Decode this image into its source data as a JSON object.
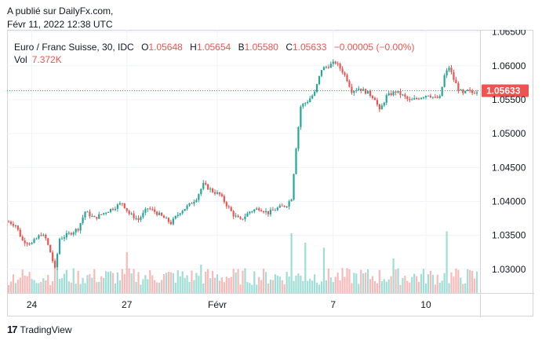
{
  "header": {
    "published_line": "A publié sur DailyFx.com,",
    "date_line": "Févr 11, 2022 12:38 UTC"
  },
  "legend": {
    "symbol": "Euro / Franc Suisse, 30, IDC",
    "o_label": "O",
    "o_value": "1.05648",
    "h_label": "H",
    "h_value": "1.05654",
    "b_label": "B",
    "b_value": "1.05580",
    "c_label": "C",
    "c_value": "1.05633",
    "change": "−0.00005 (−0.00%)",
    "vol_label": "Vol",
    "vol_value": "7.372K"
  },
  "brand": {
    "logo": "17",
    "name": "TradingView"
  },
  "colors": {
    "up": "#26a69a",
    "down": "#ef5350",
    "up_vol": "#7fd1c7",
    "down_vol": "#f5a3a1",
    "grid": "#f0f3fa",
    "axis_text": "#131722"
  },
  "chart_data": {
    "type": "candlestick",
    "title": "Euro / Franc Suisse, 30, IDC",
    "timeframe": "30",
    "x_ticks": [
      {
        "index": 10,
        "label": "24"
      },
      {
        "index": 51,
        "label": "27"
      },
      {
        "index": 90,
        "label": "Févr"
      },
      {
        "index": 140,
        "label": "7"
      },
      {
        "index": 180,
        "label": "10"
      }
    ],
    "y_ticks": [
      "1.03000",
      "1.03500",
      "1.04000",
      "1.04500",
      "1.05000",
      "1.05500",
      "1.06000",
      "1.06500"
    ],
    "ylim": [
      1.0265,
      1.0653
    ],
    "last_price": 1.05633,
    "last_price_label": "1.05633",
    "close_path": [
      [
        0,
        1.037
      ],
      [
        3,
        1.0365
      ],
      [
        6,
        1.0342
      ],
      [
        10,
        1.0338
      ],
      [
        14,
        1.0352
      ],
      [
        16,
        1.0345
      ],
      [
        18,
        1.0325
      ],
      [
        20,
        1.03
      ],
      [
        22,
        1.0345
      ],
      [
        26,
        1.0352
      ],
      [
        30,
        1.036
      ],
      [
        33,
        1.0385
      ],
      [
        37,
        1.0375
      ],
      [
        41,
        1.0383
      ],
      [
        45,
        1.039
      ],
      [
        49,
        1.0398
      ],
      [
        52,
        1.0382
      ],
      [
        56,
        1.0373
      ],
      [
        60,
        1.039
      ],
      [
        63,
        1.0385
      ],
      [
        66,
        1.0378
      ],
      [
        70,
        1.0368
      ],
      [
        74,
        1.0385
      ],
      [
        78,
        1.0395
      ],
      [
        81,
        1.0405
      ],
      [
        84,
        1.0425
      ],
      [
        88,
        1.0415
      ],
      [
        91,
        1.041
      ],
      [
        94,
        1.0395
      ],
      [
        97,
        1.038
      ],
      [
        100,
        1.0372
      ],
      [
        104,
        1.0385
      ],
      [
        108,
        1.039
      ],
      [
        112,
        1.0383
      ],
      [
        116,
        1.039
      ],
      [
        120,
        1.0395
      ],
      [
        122,
        1.0405
      ],
      [
        124,
        1.048
      ],
      [
        126,
        1.054
      ],
      [
        129,
        1.0548
      ],
      [
        132,
        1.056
      ],
      [
        135,
        1.0595
      ],
      [
        138,
        1.06
      ],
      [
        141,
        1.0605
      ],
      [
        144,
        1.0592
      ],
      [
        146,
        1.058
      ],
      [
        148,
        1.0563
      ],
      [
        151,
        1.0567
      ],
      [
        155,
        1.056
      ],
      [
        158,
        1.0552
      ],
      [
        160,
        1.0533
      ],
      [
        163,
        1.0555
      ],
      [
        167,
        1.0562
      ],
      [
        170,
        1.0556
      ],
      [
        173,
        1.0548
      ],
      [
        177,
        1.0553
      ],
      [
        181,
        1.0558
      ],
      [
        184,
        1.0552
      ],
      [
        186,
        1.0553
      ],
      [
        188,
        1.0585
      ],
      [
        190,
        1.0598
      ],
      [
        192,
        1.058
      ],
      [
        194,
        1.0566
      ],
      [
        196,
        1.0558
      ],
      [
        198,
        1.0563
      ],
      [
        200,
        1.056
      ],
      [
        202,
        1.0563
      ]
    ],
    "volume_spikes": [
      [
        20,
        0.55
      ],
      [
        51,
        0.65
      ],
      [
        83,
        0.45
      ],
      [
        122,
        0.95
      ],
      [
        128,
        0.8
      ],
      [
        136,
        0.72
      ],
      [
        166,
        0.55
      ],
      [
        189,
        0.98
      ]
    ]
  }
}
